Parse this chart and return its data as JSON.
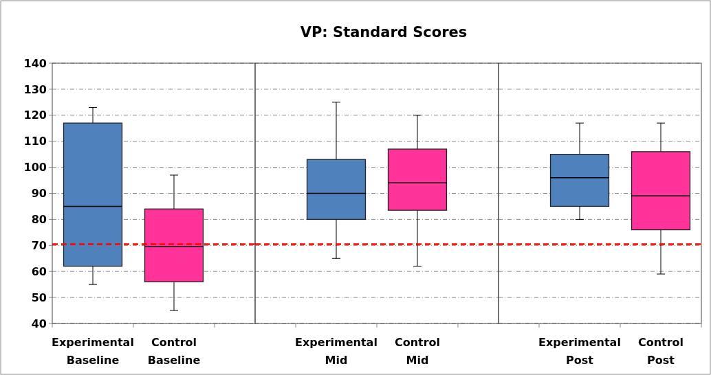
{
  "chart_data": [
    {
      "type": "box",
      "categories": [
        "Experimental Baseline",
        "Control Baseline"
      ],
      "colors": [
        "#4f81bd",
        "#ff3399"
      ],
      "boxes": [
        {
          "low": 55,
          "q1": 62,
          "median": 85,
          "q3": 117,
          "high": 123
        },
        {
          "low": 45,
          "q1": 56,
          "median": 69.5,
          "q3": 84,
          "high": 97
        }
      ],
      "ylim": [
        40,
        140
      ],
      "yticks": [
        40,
        50,
        60,
        70,
        80,
        90,
        100,
        110,
        120,
        130,
        140
      ],
      "grid": "y",
      "ref_lines": [
        {
          "axis": "y",
          "value": 70.5,
          "color": "#ff0000",
          "line_style": "dashed"
        }
      ]
    },
    {
      "type": "box",
      "title": "VP: Standard Scores",
      "categories": [
        "Experimental Mid",
        "Control Mid"
      ],
      "colors": [
        "#4f81bd",
        "#ff3399"
      ],
      "boxes": [
        {
          "low": 65,
          "q1": 80,
          "median": 90,
          "q3": 103,
          "high": 125
        },
        {
          "low": 62,
          "q1": 83.5,
          "median": 94,
          "q3": 107,
          "high": 120
        }
      ],
      "ylim": [
        40,
        140
      ],
      "yticks": [
        40,
        50,
        60,
        70,
        80,
        90,
        100,
        110,
        120,
        130,
        140
      ],
      "grid": "y",
      "tick_labels": "x",
      "ref_lines": [
        {
          "axis": "y",
          "value": 70.5,
          "color": "#ff0000",
          "line_style": "dashed"
        }
      ]
    },
    {
      "type": "box",
      "categories": [
        "Experimental Post",
        "Control Post"
      ],
      "colors": [
        "#4f81bd",
        "#ff3399"
      ],
      "boxes": [
        {
          "low": 80,
          "q1": 85,
          "median": 96,
          "q3": 105,
          "high": 117
        },
        {
          "low": 59,
          "q1": 76,
          "median": 89,
          "q3": 106,
          "high": 117
        }
      ],
      "ylim": [
        40,
        140
      ],
      "yticks": [
        40,
        50,
        60,
        70,
        80,
        90,
        100,
        110,
        120,
        130,
        140
      ],
      "grid": "y",
      "tick_labels": "x",
      "ref_lines": [
        {
          "axis": "y",
          "value": 70.5,
          "color": "#ff0000",
          "line_style": "dashed"
        }
      ]
    }
  ]
}
